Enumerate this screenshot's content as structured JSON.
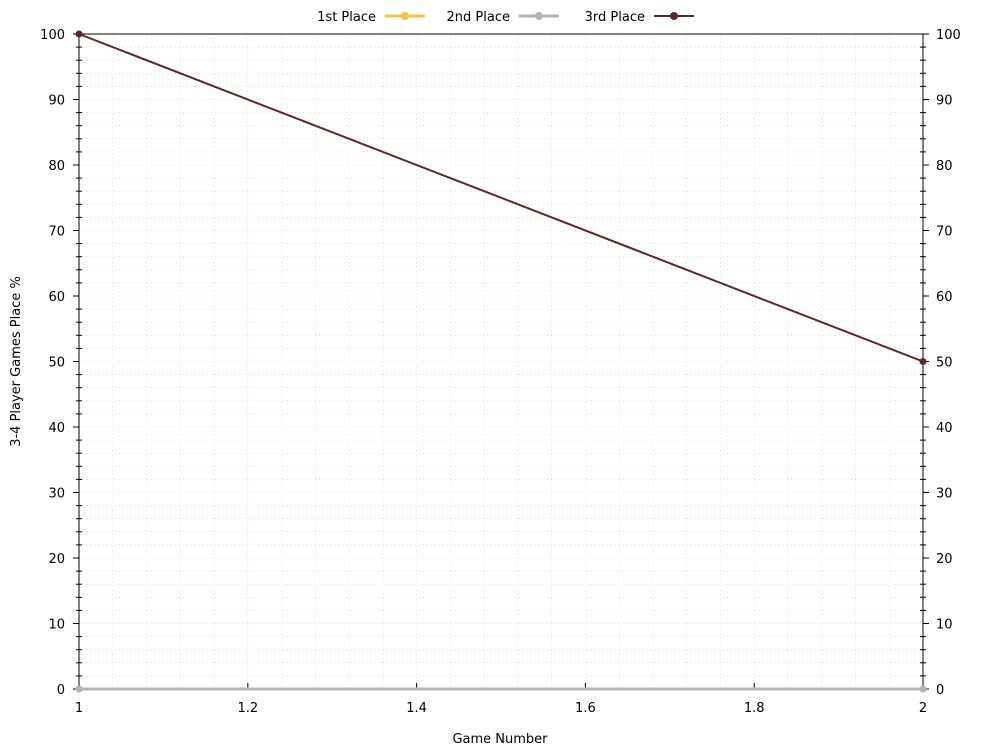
{
  "chart_data": {
    "type": "line",
    "xlabel": "Game Number",
    "ylabel": "3-4 Player Games Place %",
    "xlim": [
      1,
      2
    ],
    "ylim": [
      0,
      100
    ],
    "x_ticks": [
      "1",
      "1.2",
      "1.4",
      "1.6",
      "1.8",
      "2"
    ],
    "y_ticks": [
      "0",
      "10",
      "20",
      "30",
      "40",
      "50",
      "60",
      "70",
      "80",
      "90",
      "100"
    ],
    "y_ticks_right": true,
    "grid": "dotted minor grid",
    "legend_position": "top-center",
    "series": [
      {
        "name": "1st Place",
        "color": "#f5c242",
        "x": [
          1,
          2
        ],
        "values": [
          0,
          0
        ]
      },
      {
        "name": "2nd Place",
        "color": "#b4b4b4",
        "x": [
          1,
          2
        ],
        "values": [
          0,
          0
        ]
      },
      {
        "name": "3rd Place",
        "color": "#5c2828",
        "x": [
          1,
          2
        ],
        "values": [
          100,
          50
        ]
      }
    ]
  }
}
